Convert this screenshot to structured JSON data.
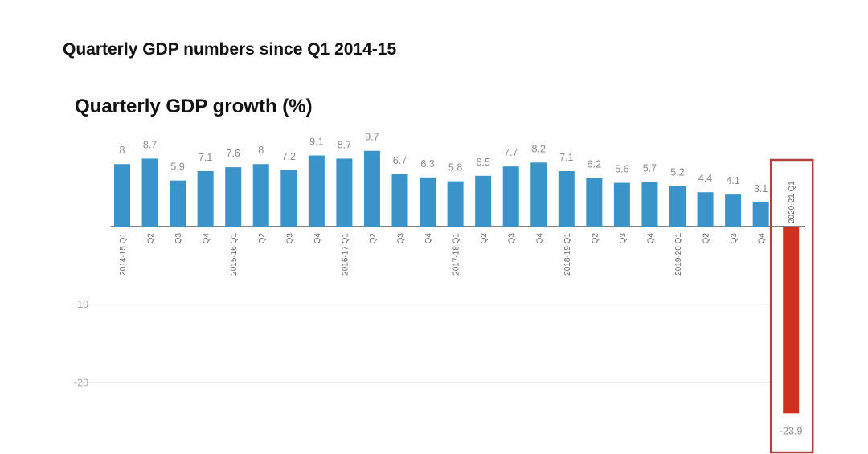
{
  "page": {
    "title": "Quarterly GDP numbers since Q1 2014-15"
  },
  "chart_data": {
    "type": "bar",
    "title": "Quarterly GDP growth (%)",
    "xlabel": "",
    "ylabel": "",
    "categories": [
      "2014-15 Q1",
      "Q2",
      "Q3",
      "Q4",
      "2015-16 Q1",
      "Q2",
      "Q3",
      "Q4",
      "2016-17 Q1",
      "Q2",
      "Q3",
      "Q4",
      "2017-18 Q1",
      "Q2",
      "Q3",
      "Q4",
      "2018-19 Q1",
      "Q2",
      "Q3",
      "Q4",
      "2019-20 Q1",
      "Q2",
      "Q3",
      "Q4",
      "2020-21 Q1"
    ],
    "values": [
      8,
      8.7,
      5.9,
      7.1,
      7.6,
      8,
      7.2,
      9.1,
      8.7,
      9.7,
      6.7,
      6.3,
      5.8,
      6.5,
      7.7,
      8.2,
      7.1,
      6.2,
      5.6,
      5.7,
      5.2,
      4.4,
      4.1,
      3.1,
      -23.9
    ],
    "value_labels": [
      "8",
      "8.7",
      "5.9",
      "7.1",
      "7.6",
      "8",
      "7.2",
      "9.1",
      "8.7",
      "9.7",
      "6.7",
      "6.3",
      "5.8",
      "6.5",
      "7.7",
      "8.2",
      "7.1",
      "6.2",
      "5.6",
      "5.7",
      "5.2",
      "4.4",
      "4.1",
      "3.1",
      "-23.9"
    ],
    "yticks": [
      {
        "value": -10,
        "label": "-10"
      },
      {
        "value": -20,
        "label": "-20"
      }
    ],
    "ylim": [
      -25,
      10
    ],
    "grid": true,
    "highlight_index": 24,
    "colors": {
      "positive": "#3a93c9",
      "negative": "#d1301f",
      "highlight_box": "#b3413a"
    }
  }
}
